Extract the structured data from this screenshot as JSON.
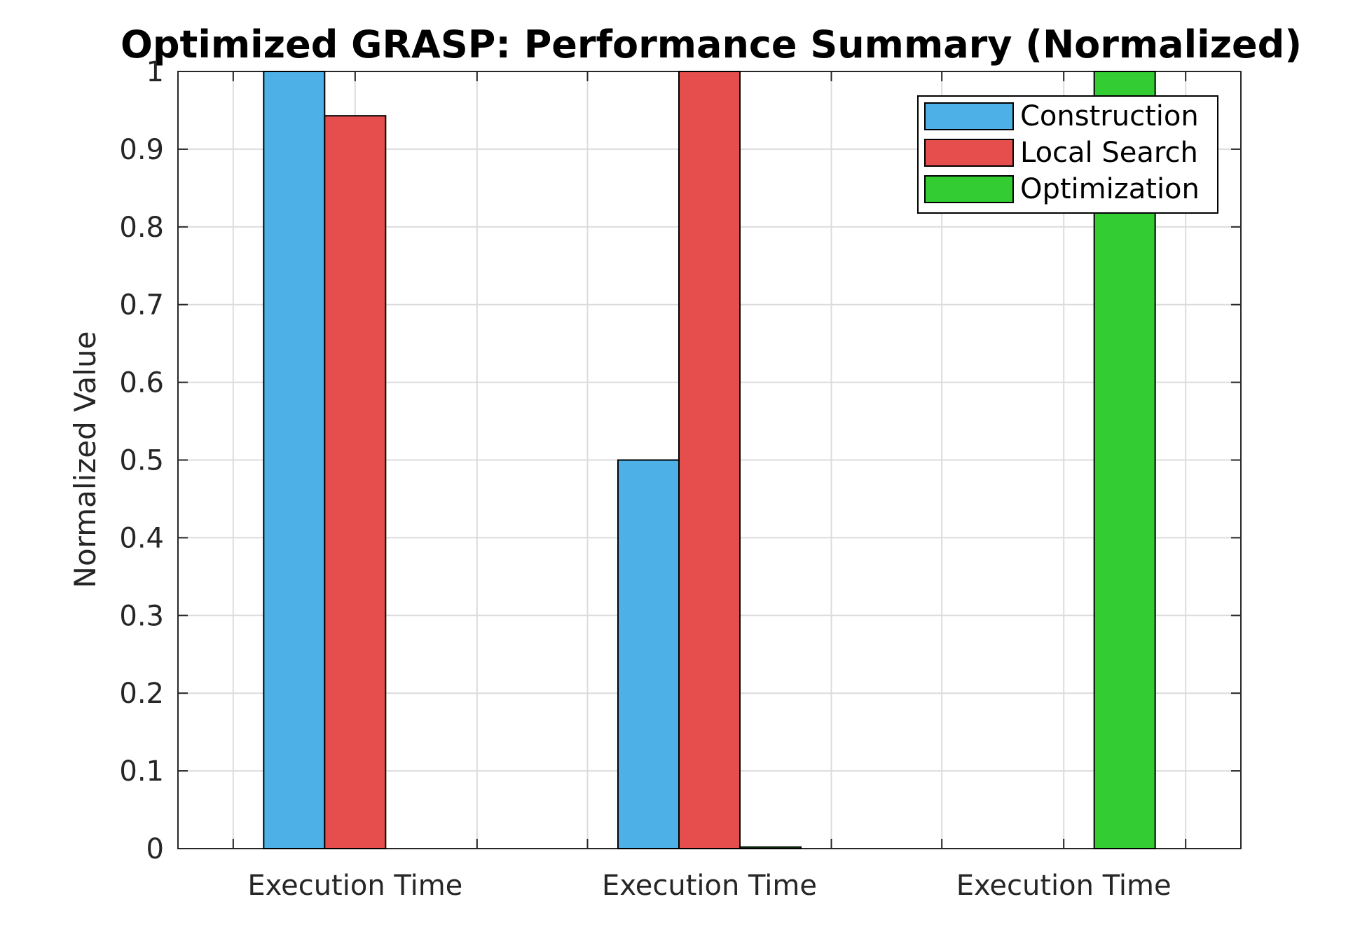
{
  "chart_data": {
    "type": "bar",
    "title": "Optimized GRASP: Performance Summary (Normalized)",
    "xlabel": "",
    "ylabel": "Normalized Value",
    "ylim": [
      0,
      1
    ],
    "yticks": [
      "0",
      "0.1",
      "0.2",
      "0.3",
      "0.4",
      "0.5",
      "0.6",
      "0.7",
      "0.8",
      "0.9",
      "1"
    ],
    "categories": [
      "Execution Time",
      "Execution Time",
      "Execution Time"
    ],
    "grid": true,
    "legend_position": "top-right",
    "series": [
      {
        "name": "Construction",
        "color": "#4db0e6",
        "values": [
          1.0,
          0.5,
          0.0
        ]
      },
      {
        "name": "Local Search",
        "color": "#e64d4d",
        "values": [
          0.943,
          1.0,
          0.0
        ]
      },
      {
        "name": "Optimization",
        "color": "#33cc33",
        "values": [
          0.0,
          0.002,
          1.0
        ]
      }
    ]
  }
}
